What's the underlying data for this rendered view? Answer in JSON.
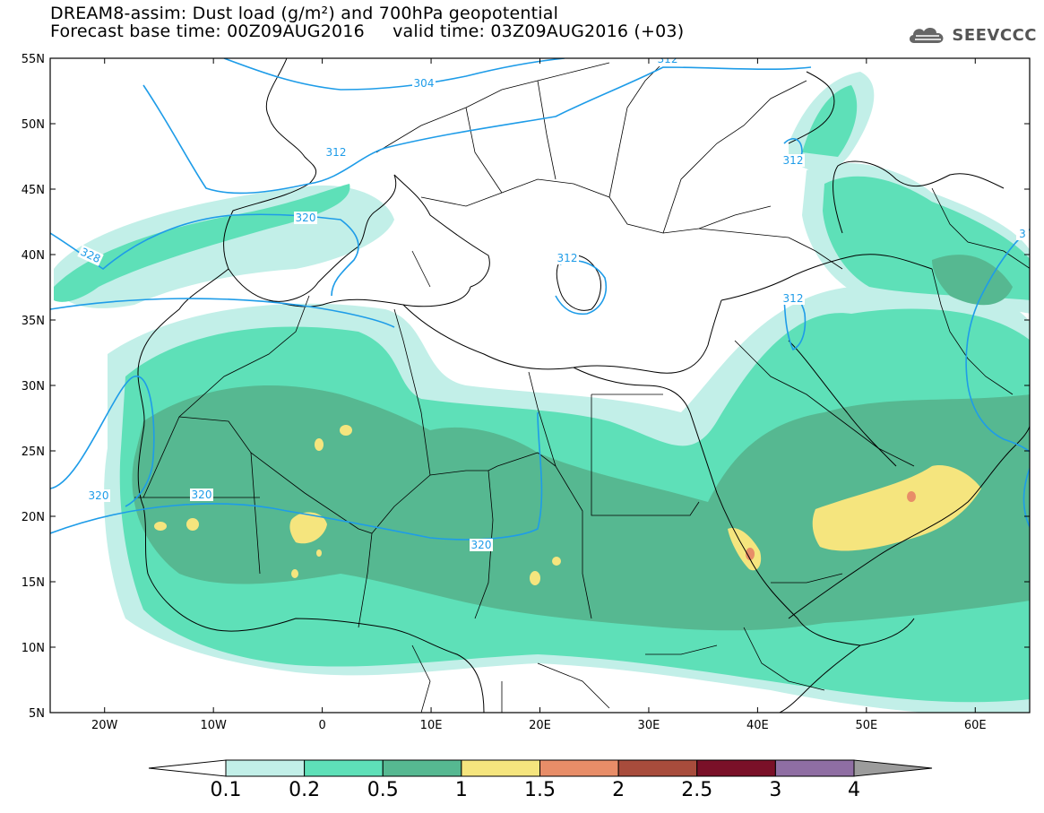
{
  "title": {
    "line1": "DREAM8-assim: Dust load (g/m²) and 700hPa geopotential",
    "line2": "Forecast base time: 00Z09AUG2016     valid time: 03Z09AUG2016 (+03)"
  },
  "logo": {
    "text": "SEEVCCC",
    "icon": "cloud-icon"
  },
  "map": {
    "lat_range": [
      5,
      55
    ],
    "lon_range": [
      -25,
      65
    ],
    "lat_ticks": [
      "5N",
      "10N",
      "15N",
      "20N",
      "25N",
      "30N",
      "35N",
      "40N",
      "45N",
      "50N",
      "55N"
    ],
    "lon_ticks": [
      "20W",
      "10W",
      "0",
      "10E",
      "20E",
      "30E",
      "40E",
      "50E",
      "60E"
    ],
    "contour_labels": [
      "304",
      "312",
      "312",
      "320",
      "328",
      "312",
      "312",
      "312",
      "320",
      "320",
      "320",
      "3"
    ],
    "colors": {
      "level_0_1": "#c2efe8",
      "level_0_2": "#5ee0b8",
      "level_0_5": "#56b891",
      "level_1": "#f5e57e",
      "level_1_5": "#e88d68",
      "contour": "#1e9ce8",
      "border": "#000000"
    }
  },
  "colorbar": {
    "labels": [
      "0.1",
      "0.2",
      "0.5",
      "1",
      "1.5",
      "2",
      "2.5",
      "3",
      "4"
    ],
    "colors": [
      "#c2efe8",
      "#5ee0b8",
      "#56b891",
      "#f5e57e",
      "#e88d68",
      "#a84c3c",
      "#7a1028",
      "#8f6ea3"
    ],
    "under_color": "#ffffff",
    "over_color": "#9c9c9c"
  }
}
